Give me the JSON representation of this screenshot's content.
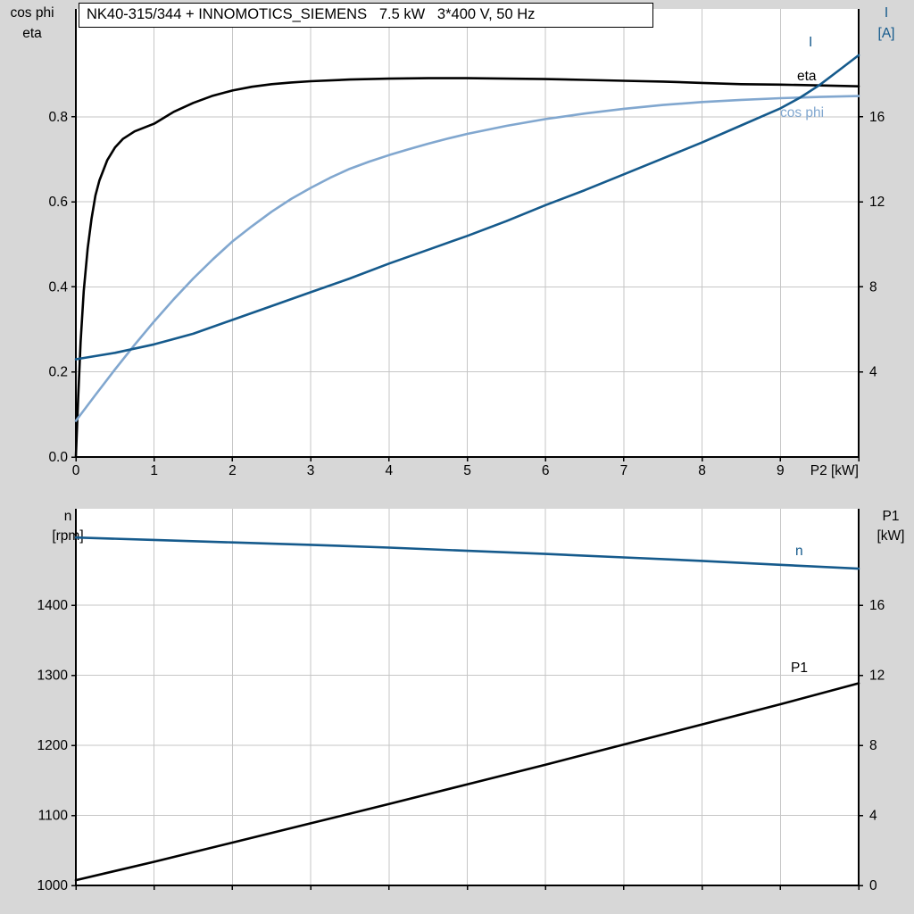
{
  "title": "NK40-315/344 + INNOMOTICS_SIEMENS   7.5 kW   3*400 V, 50 Hz",
  "colors": {
    "background": "#d7d7d7",
    "plot_bg": "#ffffff",
    "grid": "#c6c6c6",
    "axis": "#000000",
    "black": "#000000",
    "dark_blue": "#155a8c",
    "light_blue": "#81a7cf"
  },
  "chart_data": [
    {
      "type": "line",
      "title": "NK40-315/344 + INNOMOTICS_SIEMENS   7.5 kW   3*400 V, 50 Hz",
      "x_axis": {
        "label": "P2 [kW]",
        "range": [
          0,
          10
        ],
        "ticks": [
          0,
          1,
          2,
          3,
          4,
          5,
          6,
          7,
          8,
          9,
          10
        ],
        "tick_labels": [
          "0",
          "1",
          "2",
          "3",
          "4",
          "5",
          "6",
          "7",
          "8",
          "9",
          ""
        ],
        "grid": [
          1,
          2,
          3,
          4,
          5,
          6,
          7,
          8,
          9
        ]
      },
      "left_axis": {
        "title_lines": [
          "cos phi",
          "eta"
        ],
        "title_color": "#000000",
        "range": [
          0,
          1.054
        ],
        "ticks": [
          0,
          0.2,
          0.4,
          0.6,
          0.8
        ],
        "tick_labels": [
          "0.0",
          "0.2",
          "0.4",
          "0.6",
          "0.8"
        ],
        "grid": [
          0.2,
          0.4,
          0.6,
          0.8
        ]
      },
      "right_axis": {
        "title_lines": [
          "I",
          "[A]"
        ],
        "title_color": "#155a8c",
        "range": [
          0,
          21.08
        ],
        "ticks": [
          4,
          8,
          12,
          16
        ],
        "tick_labels": [
          "4",
          "8",
          "12",
          "16"
        ]
      },
      "series": [
        {
          "name": "eta",
          "axis": "left",
          "color": "#000000",
          "points": [
            [
              0,
              0
            ],
            [
              0.03,
              0.14
            ],
            [
              0.06,
              0.27
            ],
            [
              0.1,
              0.39
            ],
            [
              0.15,
              0.49
            ],
            [
              0.2,
              0.56
            ],
            [
              0.25,
              0.615
            ],
            [
              0.3,
              0.65
            ],
            [
              0.4,
              0.698
            ],
            [
              0.5,
              0.728
            ],
            [
              0.6,
              0.748
            ],
            [
              0.75,
              0.766
            ],
            [
              1,
              0.784
            ],
            [
              1.25,
              0.812
            ],
            [
              1.5,
              0.833
            ],
            [
              1.75,
              0.85
            ],
            [
              2,
              0.862
            ],
            [
              2.25,
              0.871
            ],
            [
              2.5,
              0.877
            ],
            [
              2.75,
              0.881
            ],
            [
              3,
              0.884
            ],
            [
              3.5,
              0.888
            ],
            [
              4,
              0.89
            ],
            [
              4.5,
              0.891
            ],
            [
              5,
              0.891
            ],
            [
              5.5,
              0.89
            ],
            [
              6,
              0.889
            ],
            [
              6.5,
              0.887
            ],
            [
              7,
              0.885
            ],
            [
              7.5,
              0.883
            ],
            [
              8,
              0.88
            ],
            [
              8.5,
              0.877
            ],
            [
              9,
              0.876
            ],
            [
              9.5,
              0.874
            ],
            [
              10,
              0.872
            ]
          ]
        },
        {
          "name": "cos phi",
          "axis": "left",
          "color": "#81a7cf",
          "points": [
            [
              0,
              0.085
            ],
            [
              0.25,
              0.146
            ],
            [
              0.5,
              0.206
            ],
            [
              0.75,
              0.264
            ],
            [
              1,
              0.319
            ],
            [
              1.25,
              0.371
            ],
            [
              1.5,
              0.42
            ],
            [
              1.75,
              0.465
            ],
            [
              2,
              0.507
            ],
            [
              2.25,
              0.543
            ],
            [
              2.5,
              0.577
            ],
            [
              2.75,
              0.607
            ],
            [
              3,
              0.633
            ],
            [
              3.25,
              0.657
            ],
            [
              3.5,
              0.678
            ],
            [
              3.75,
              0.695
            ],
            [
              4,
              0.71
            ],
            [
              4.25,
              0.724
            ],
            [
              4.5,
              0.737
            ],
            [
              4.75,
              0.749
            ],
            [
              5,
              0.76
            ],
            [
              5.5,
              0.779
            ],
            [
              6,
              0.795
            ],
            [
              6.5,
              0.808
            ],
            [
              7,
              0.819
            ],
            [
              7.5,
              0.828
            ],
            [
              8,
              0.835
            ],
            [
              8.5,
              0.84
            ],
            [
              9,
              0.844
            ],
            [
              9.5,
              0.847
            ],
            [
              10,
              0.849
            ]
          ]
        },
        {
          "name": "I",
          "axis": "right",
          "color": "#155a8c",
          "points": [
            [
              0,
              4.6
            ],
            [
              0.5,
              4.9
            ],
            [
              1,
              5.3
            ],
            [
              1.5,
              5.8
            ],
            [
              2,
              6.45
            ],
            [
              2.5,
              7.1
            ],
            [
              3,
              7.75
            ],
            [
              3.5,
              8.4
            ],
            [
              4,
              9.1
            ],
            [
              4.5,
              9.75
            ],
            [
              5,
              10.4
            ],
            [
              5.5,
              11.1
            ],
            [
              6,
              11.85
            ],
            [
              6.5,
              12.55
            ],
            [
              7,
              13.3
            ],
            [
              7.5,
              14.05
            ],
            [
              8,
              14.8
            ],
            [
              8.5,
              15.6
            ],
            [
              9,
              16.4
            ],
            [
              9.25,
              16.9
            ],
            [
              9.5,
              17.5
            ],
            [
              9.75,
              18.2
            ],
            [
              10,
              18.9
            ]
          ]
        }
      ]
    },
    {
      "type": "line",
      "title": "",
      "x_axis": {
        "label": "",
        "range": [
          0,
          10
        ],
        "ticks": [
          0,
          1,
          2,
          3,
          4,
          5,
          6,
          7,
          8,
          9,
          10
        ],
        "tick_labels": [],
        "grid": [
          1,
          2,
          3,
          4,
          5,
          6,
          7,
          8,
          9
        ]
      },
      "left_axis": {
        "title_lines": [
          "n",
          "[rpm]"
        ],
        "title_color": "#000000",
        "range": [
          1000,
          1538
        ],
        "ticks": [
          1000,
          1100,
          1200,
          1300,
          1400
        ],
        "tick_labels": [
          "1000",
          "1100",
          "1200",
          "1300",
          "1400"
        ],
        "grid": [
          1100,
          1200,
          1300,
          1400
        ]
      },
      "right_axis": {
        "title_lines": [
          "P1",
          "[kW]"
        ],
        "title_color": "#000000",
        "range": [
          0,
          21.52
        ],
        "ticks": [
          0,
          4,
          8,
          12,
          16
        ],
        "tick_labels": [
          "0",
          "4",
          "8",
          "12",
          "16"
        ]
      },
      "series": [
        {
          "name": "n",
          "axis": "left",
          "color": "#155a8c",
          "points": [
            [
              0,
              1497
            ],
            [
              1,
              1493.5
            ],
            [
              2,
              1490
            ],
            [
              3,
              1486.5
            ],
            [
              4,
              1482.5
            ],
            [
              5,
              1478
            ],
            [
              6,
              1473.5
            ],
            [
              7,
              1468.5
            ],
            [
              8,
              1463.5
            ],
            [
              9,
              1458
            ],
            [
              10,
              1452.5
            ]
          ]
        },
        {
          "name": "P1",
          "axis": "right",
          "color": "#000000",
          "points": [
            [
              0,
              0.3
            ],
            [
              1,
              1.35
            ],
            [
              2,
              2.45
            ],
            [
              3,
              3.55
            ],
            [
              4,
              4.65
            ],
            [
              5,
              5.78
            ],
            [
              6,
              6.9
            ],
            [
              7,
              8.05
            ],
            [
              8,
              9.2
            ],
            [
              9,
              10.35
            ],
            [
              10,
              11.55
            ]
          ]
        }
      ]
    }
  ]
}
